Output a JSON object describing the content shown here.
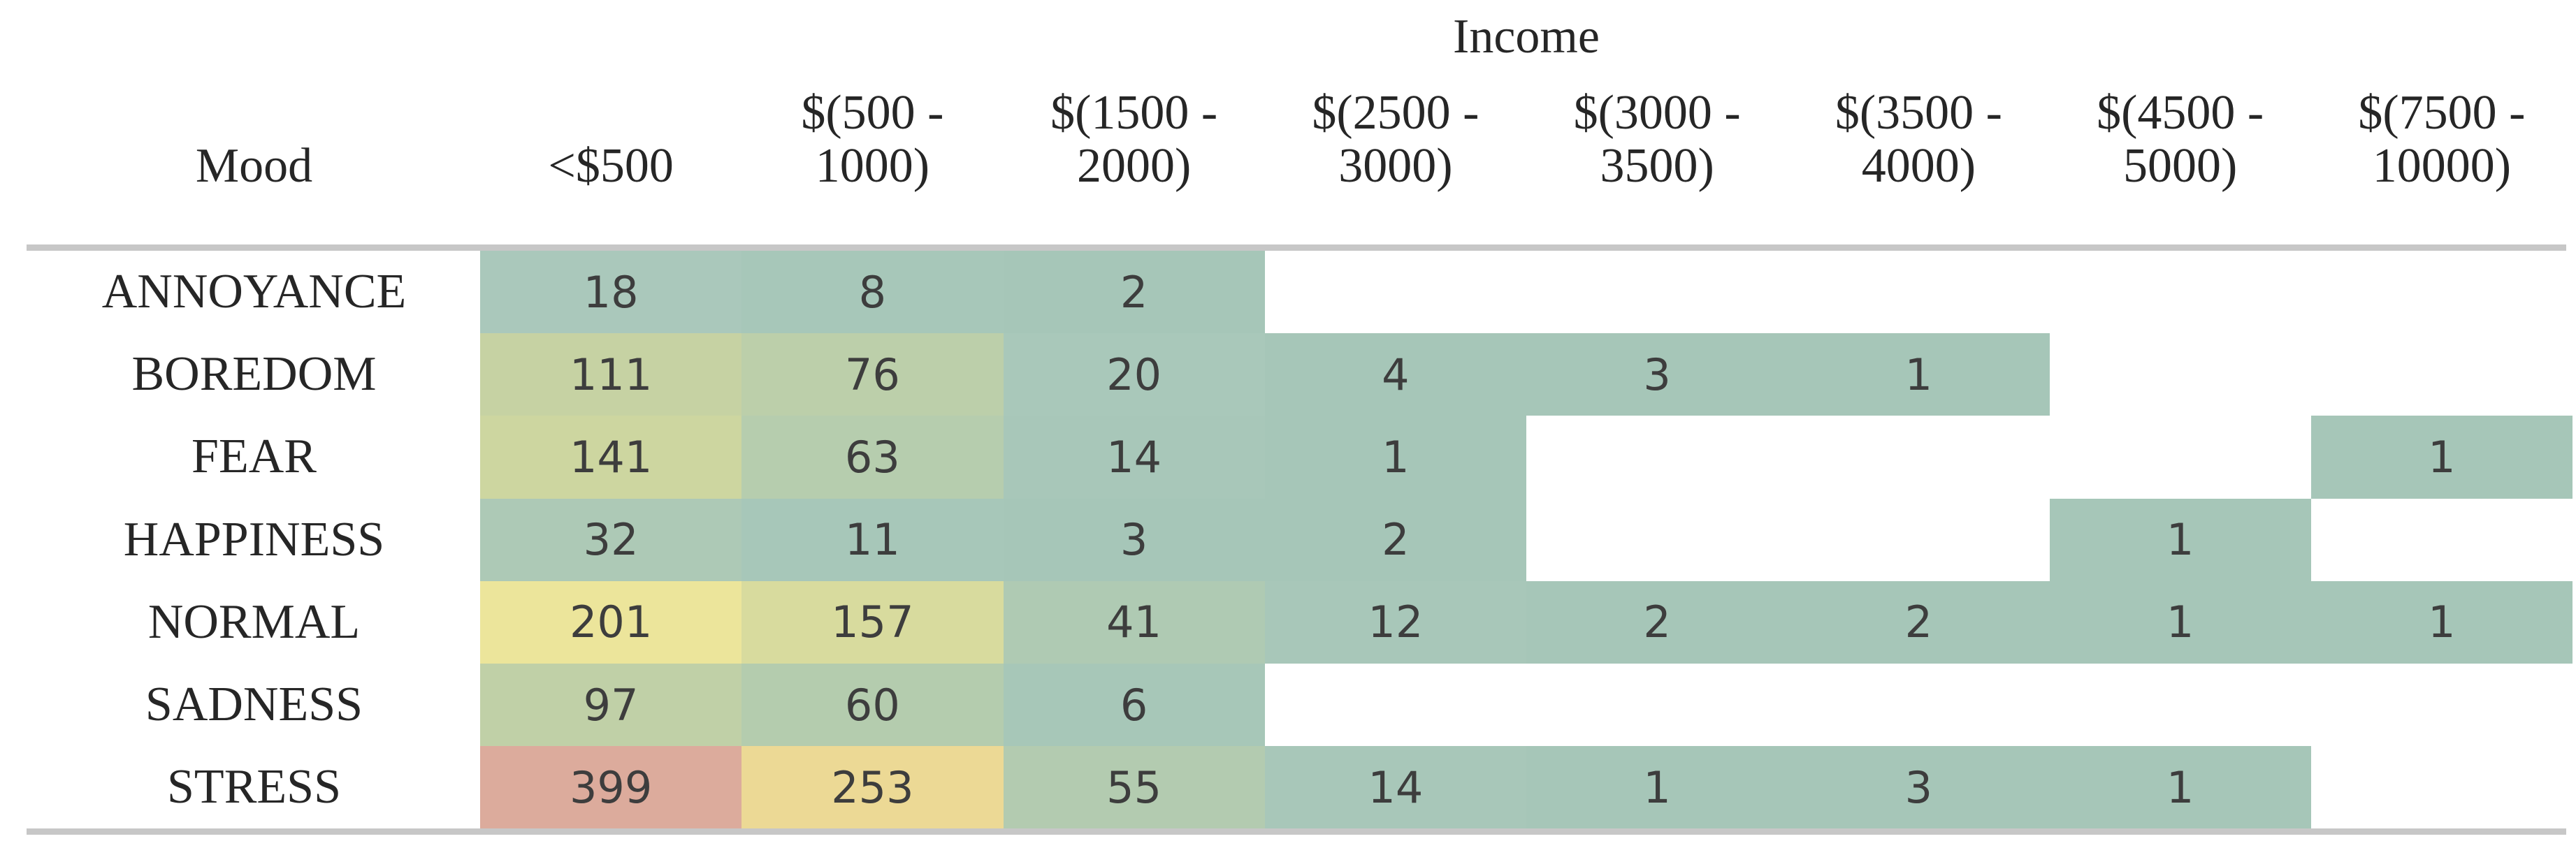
{
  "chart_data": {
    "type": "heatmap",
    "title": "Income",
    "row_axis_label": "Mood",
    "columns": [
      "<$500",
      "$(500 -\n1000)",
      "$(1500 -\n2000)",
      "$(2500 -\n3000)",
      "$(3000 -\n3500)",
      "$(3500 -\n4000)",
      "$(4500 -\n5000)",
      "$(7500 -\n10000)"
    ],
    "rows": [
      "ANNOYANCE",
      "BOREDOM",
      "FEAR",
      "HAPPINESS",
      "NORMAL",
      "SADNESS",
      "STRESS"
    ],
    "values": [
      [
        18,
        8,
        2,
        null,
        null,
        null,
        null,
        null
      ],
      [
        111,
        76,
        20,
        4,
        3,
        1,
        null,
        null
      ],
      [
        141,
        63,
        14,
        1,
        null,
        null,
        null,
        1
      ],
      [
        32,
        11,
        3,
        2,
        null,
        null,
        1,
        null
      ],
      [
        201,
        157,
        41,
        12,
        2,
        2,
        1,
        1
      ],
      [
        97,
        60,
        6,
        null,
        null,
        null,
        null,
        null
      ],
      [
        399,
        253,
        55,
        14,
        1,
        3,
        1,
        null
      ]
    ],
    "cell_colors": [
      [
        "#aac8bb",
        "#a7c7b9",
        "#a6c6b8",
        null,
        null,
        null,
        null,
        null
      ],
      [
        "#c6d2a3",
        "#bccfaa",
        "#a9c8ba",
        "#a6c6b8",
        "#a6c6b8",
        "#a6c6b8",
        null,
        null
      ],
      [
        "#cdd6a0",
        "#b6cdae",
        "#a8c7b9",
        "#a6c6b8",
        null,
        null,
        null,
        "#a6c6b8"
      ],
      [
        "#adc9b6",
        "#a7c7b9",
        "#a6c6b8",
        "#a6c6b8",
        null,
        null,
        "#a6c6b8",
        null
      ],
      [
        "#ece59b",
        "#d8db9e",
        "#afcab3",
        "#a8c7b9",
        "#a6c6b8",
        "#a6c6b8",
        "#a6c6b8",
        "#a6c6b8"
      ],
      [
        "#c0d0a7",
        "#b4ccae",
        "#a7c7b8",
        null,
        null,
        null,
        null,
        null
      ],
      [
        "#dcab9c",
        "#ecd995",
        "#b3cbb0",
        "#a8c7b9",
        "#a6c6b8",
        "#a6c6b8",
        "#a6c6b8",
        null
      ]
    ],
    "color_scale": {
      "low_value_color": "#a6c6b8",
      "mid_value_color": "#ece59b",
      "high_value_color": "#dcab9c"
    },
    "legend_position": "none",
    "grid": false,
    "empty_cell_color": "#ffffff",
    "separator_line_color": "#c7c7c7",
    "value_min": 1,
    "value_max": 399
  }
}
